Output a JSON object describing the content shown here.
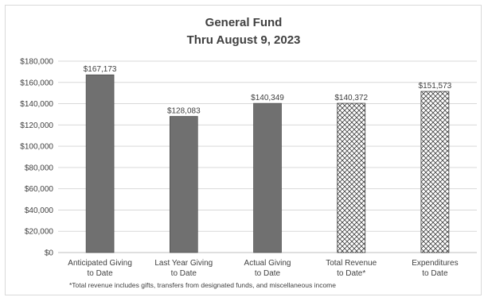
{
  "chart_data": {
    "type": "bar",
    "title": "General Fund",
    "subtitle": "Thru August 9, 2023",
    "categories": [
      [
        "Anticipated Giving",
        "to Date"
      ],
      [
        "Last Year Giving",
        "to Date"
      ],
      [
        "Actual Giving",
        "to Date"
      ],
      [
        "Total Revenue",
        "to Date*"
      ],
      [
        "Expenditures",
        "to Date"
      ]
    ],
    "values": [
      167173,
      128083,
      140349,
      140372,
      151573
    ],
    "data_labels": [
      "$167,173",
      "$128,083",
      "$140,349",
      "$140,372",
      "$151,573"
    ],
    "bar_styles": [
      "solid",
      "solid",
      "solid",
      "hatched",
      "hatched"
    ],
    "ylim": [
      0,
      180000
    ],
    "yticks": [
      {
        "value": 0,
        "label": "$0"
      },
      {
        "value": 20000,
        "label": "$20,000"
      },
      {
        "value": 40000,
        "label": "$40,000"
      },
      {
        "value": 60000,
        "label": "$60,000"
      },
      {
        "value": 80000,
        "label": "$80,000"
      },
      {
        "value": 100000,
        "label": "$100,000"
      },
      {
        "value": 120000,
        "label": "$120,000"
      },
      {
        "value": 140000,
        "label": "$140,000"
      },
      {
        "value": 160000,
        "label": "$160,000"
      },
      {
        "value": 180000,
        "label": "$180,000"
      }
    ],
    "grid": true,
    "legend": "none",
    "footnote": "*Total revenue includes gifts, transfers from designated funds, and miscellaneous income",
    "colors": {
      "solid_fill": "#707070",
      "solid_stroke": "#404040",
      "hatch_stroke": "#404040",
      "hatch_bg": "#ffffff"
    }
  }
}
